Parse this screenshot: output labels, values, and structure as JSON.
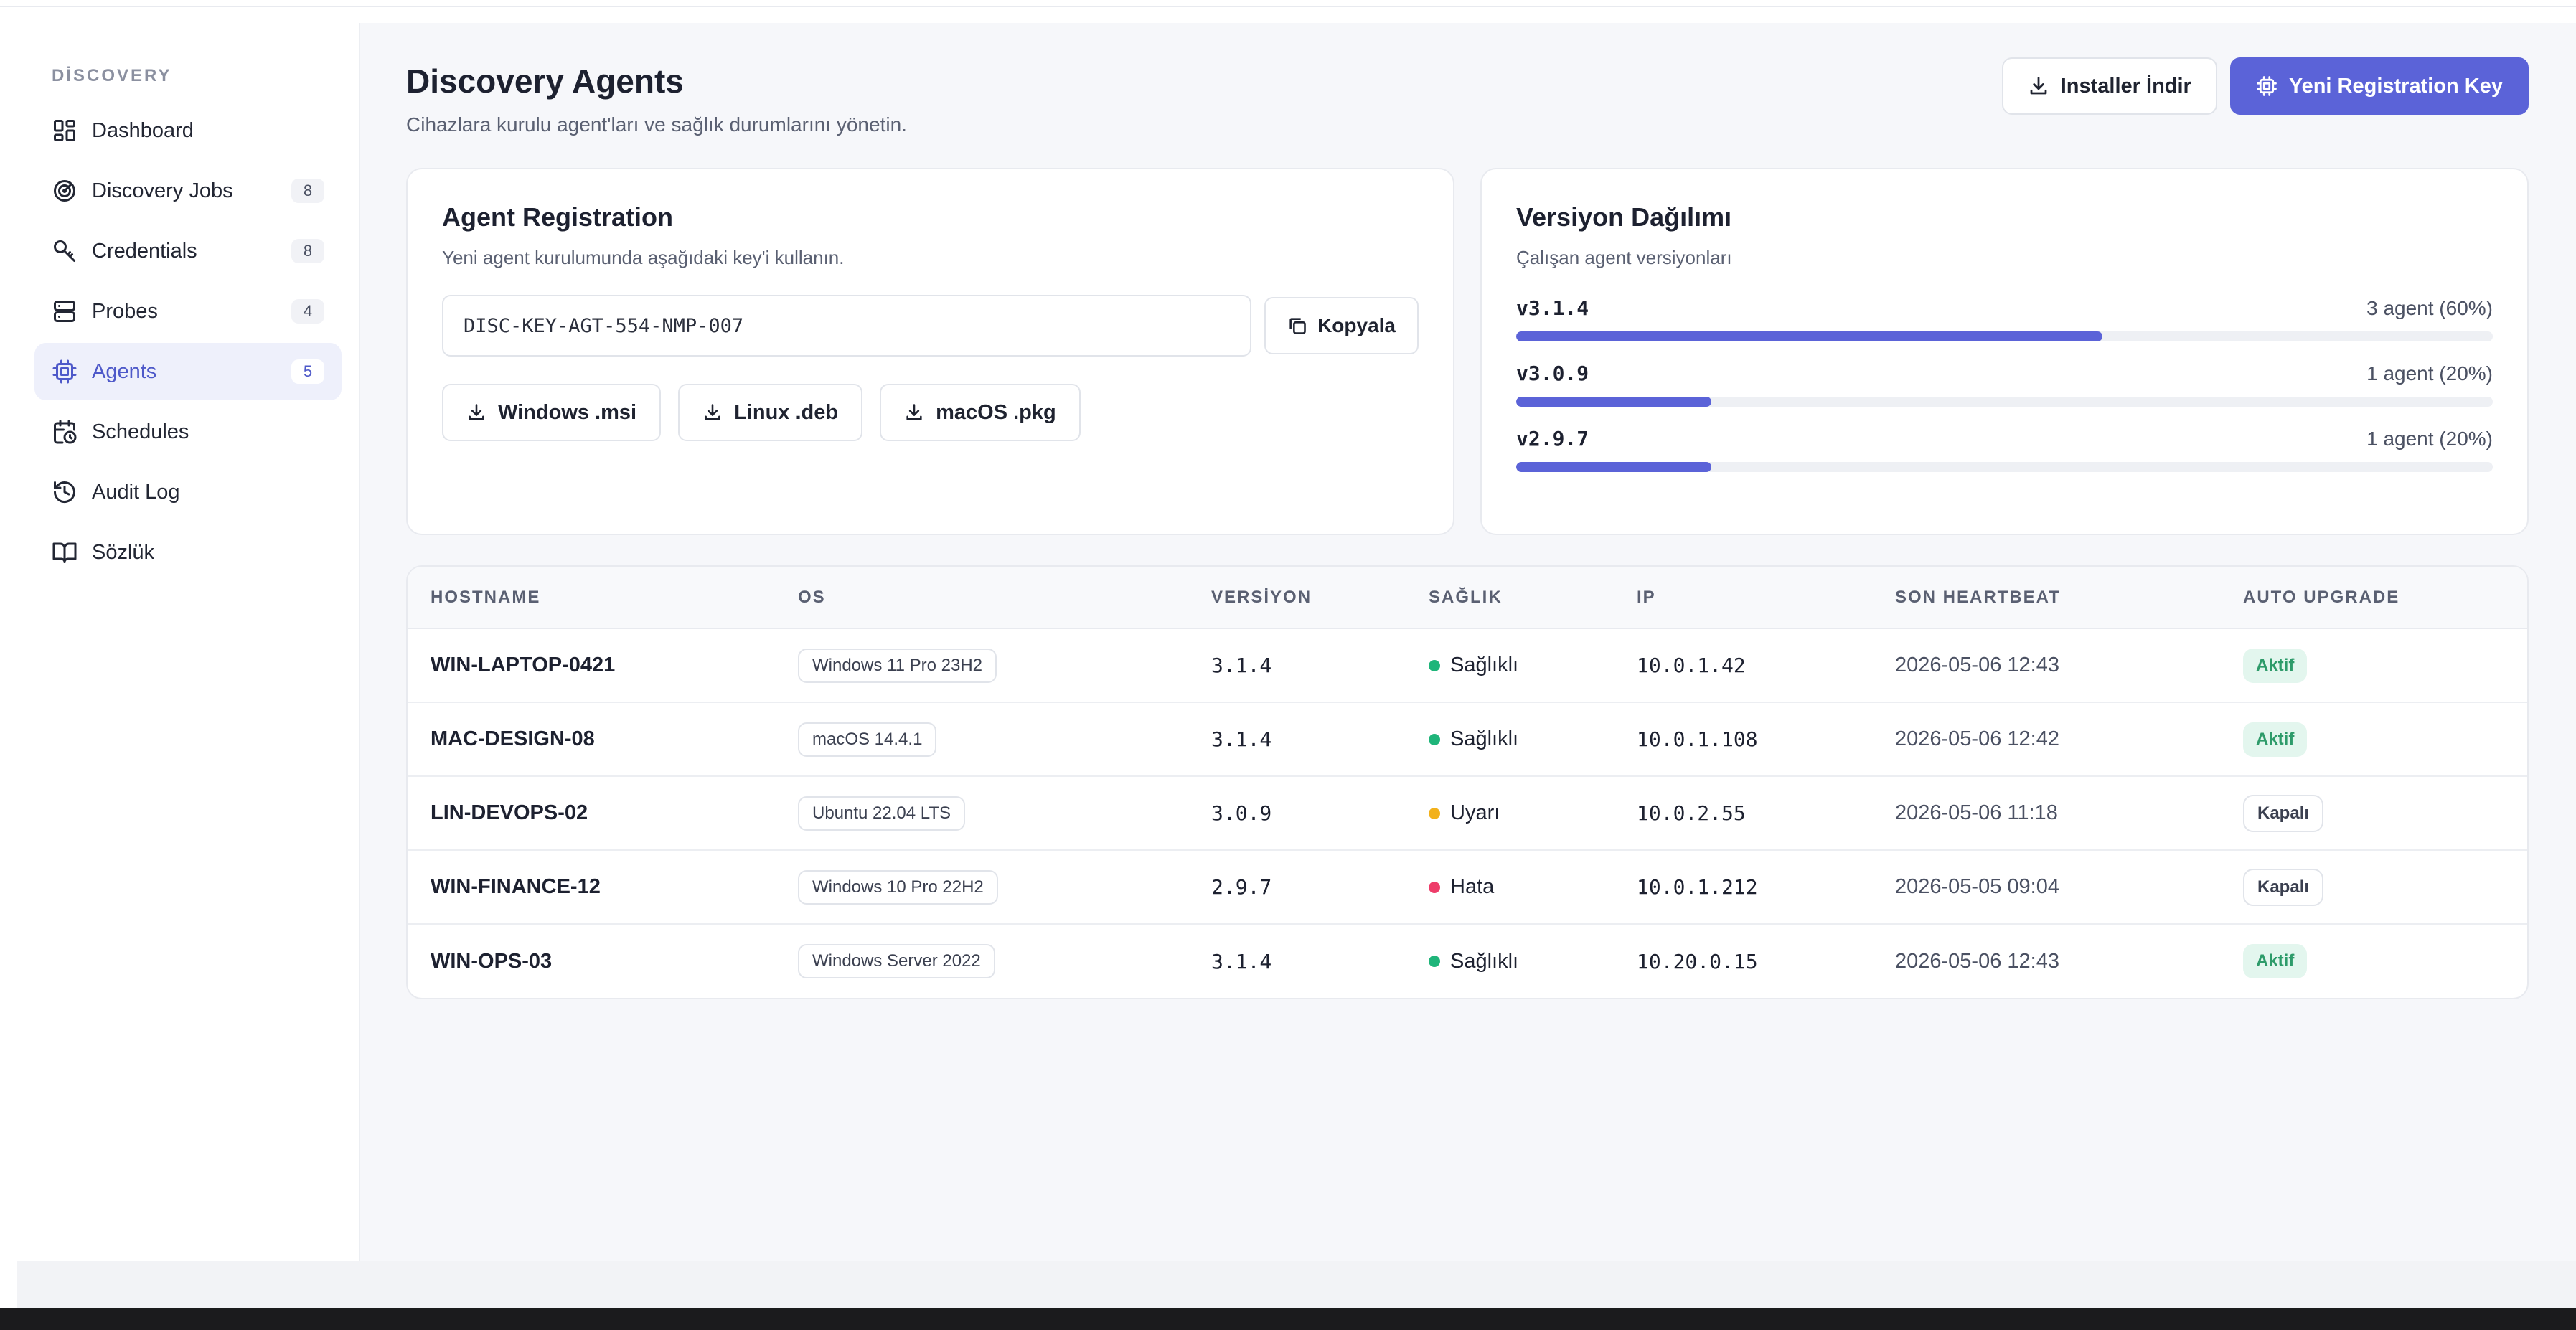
{
  "sidebar": {
    "section": "DİSCOVERY",
    "items": [
      {
        "label": "Dashboard",
        "icon": "dashboard-icon",
        "badge": null,
        "active": false
      },
      {
        "label": "Discovery Jobs",
        "icon": "radar-icon",
        "badge": "8",
        "active": false
      },
      {
        "label": "Credentials",
        "icon": "key-icon",
        "badge": "8",
        "active": false
      },
      {
        "label": "Probes",
        "icon": "server-icon",
        "badge": "4",
        "active": false
      },
      {
        "label": "Agents",
        "icon": "cpu-icon",
        "badge": "5",
        "active": true
      },
      {
        "label": "Schedules",
        "icon": "calendar-clock-icon",
        "badge": null,
        "active": false
      },
      {
        "label": "Audit Log",
        "icon": "history-icon",
        "badge": null,
        "active": false
      },
      {
        "label": "Sözlük",
        "icon": "book-icon",
        "badge": null,
        "active": false
      }
    ]
  },
  "header": {
    "title": "Discovery Agents",
    "subtitle": "Cihazlara kurulu agent'ları ve sağlık durumlarını yönetin.",
    "installer_label": "Installer İndir",
    "new_key_label": "Yeni Registration Key"
  },
  "registration": {
    "title": "Agent Registration",
    "subtitle": "Yeni agent kurulumunda aşağıdaki key'i kullanın.",
    "key": "DISC-KEY-AGT-554-NMP-007",
    "copy_label": "Kopyala",
    "downloads": [
      "Windows .msi",
      "Linux .deb",
      "macOS .pkg"
    ]
  },
  "versions": {
    "title": "Versiyon Dağılımı",
    "subtitle": "Çalışan agent versiyonları",
    "items": [
      {
        "name": "v3.1.4",
        "count": "3 agent (60%)",
        "percent": 60
      },
      {
        "name": "v3.0.9",
        "count": "1 agent (20%)",
        "percent": 20
      },
      {
        "name": "v2.9.7",
        "count": "1 agent (20%)",
        "percent": 20
      }
    ]
  },
  "table": {
    "columns": [
      "HOSTNAME",
      "OS",
      "VERSİYON",
      "SAĞLIK",
      "IP",
      "SON HEARTBEAT",
      "AUTO UPGRADE"
    ],
    "rows": [
      {
        "hostname": "WIN-LAPTOP-0421",
        "os": "Windows 11 Pro 23H2",
        "version": "3.1.4",
        "health": "Sağlıklı",
        "health_color": "#1fb57a",
        "ip": "10.0.1.42",
        "heartbeat": "2026-05-06 12:43",
        "auto_upgrade": "Aktif",
        "auto_on": true
      },
      {
        "hostname": "MAC-DESIGN-08",
        "os": "macOS 14.4.1",
        "version": "3.1.4",
        "health": "Sağlıklı",
        "health_color": "#1fb57a",
        "ip": "10.0.1.108",
        "heartbeat": "2026-05-06 12:42",
        "auto_upgrade": "Aktif",
        "auto_on": true
      },
      {
        "hostname": "LIN-DEVOPS-02",
        "os": "Ubuntu 22.04 LTS",
        "version": "3.0.9",
        "health": "Uyarı",
        "health_color": "#f2b11c",
        "ip": "10.0.2.55",
        "heartbeat": "2026-05-06 11:18",
        "auto_upgrade": "Kapalı",
        "auto_on": false
      },
      {
        "hostname": "WIN-FINANCE-12",
        "os": "Windows 10 Pro 22H2",
        "version": "2.9.7",
        "health": "Hata",
        "health_color": "#ee3d6a",
        "ip": "10.0.1.212",
        "heartbeat": "2026-05-05 09:04",
        "auto_upgrade": "Kapalı",
        "auto_on": false
      },
      {
        "hostname": "WIN-OPS-03",
        "os": "Windows Server 2022",
        "version": "3.1.4",
        "health": "Sağlıklı",
        "health_color": "#1fb57a",
        "ip": "10.20.0.15",
        "heartbeat": "2026-05-06 12:43",
        "auto_upgrade": "Aktif",
        "auto_on": true
      }
    ]
  },
  "colors": {
    "accent": "#5b63d8",
    "active_bg": "#eef0fb",
    "healthy": "#1fb57a",
    "warning": "#f2b11c",
    "error": "#ee3d6a"
  }
}
